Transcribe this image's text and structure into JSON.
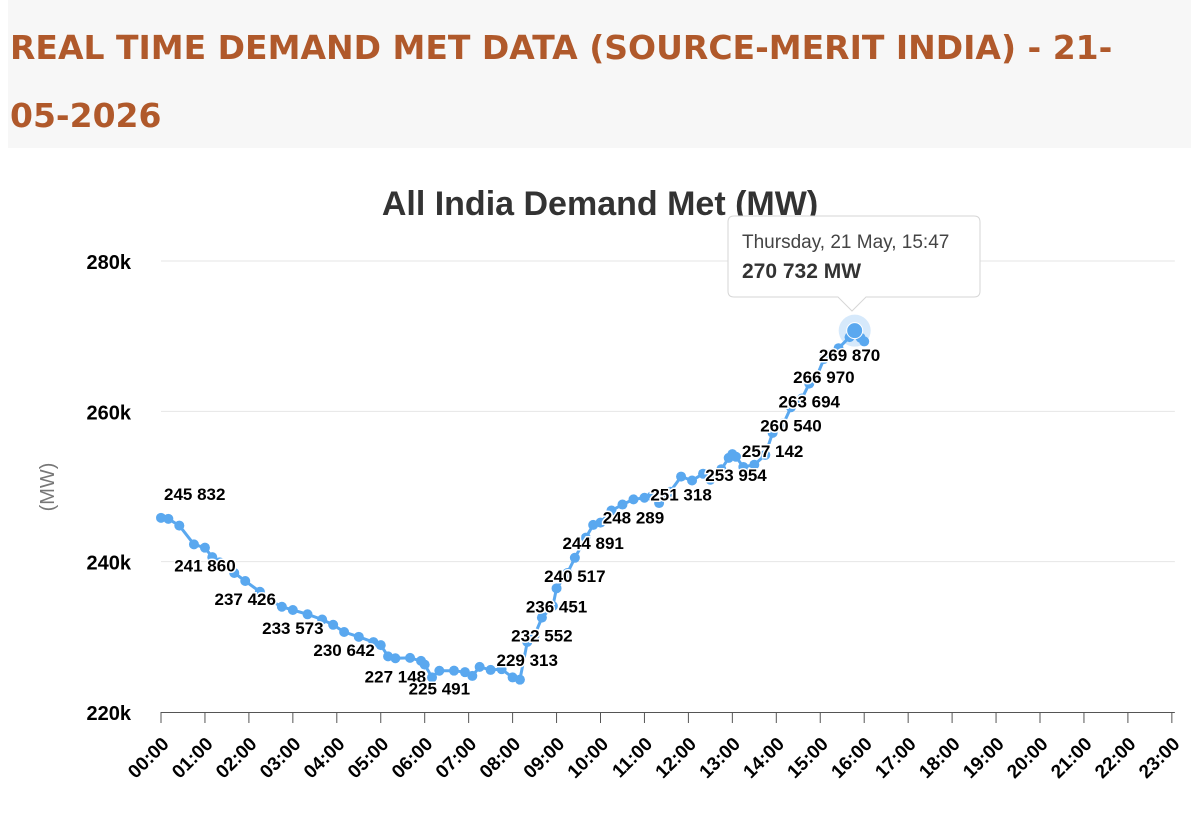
{
  "page": {
    "title": "REAL TIME DEMAND MET DATA (SOURCE-MERIT INDIA) - 21-05-2026"
  },
  "colors": {
    "title": "#b0592b",
    "series": "#5aa8ef",
    "grid": "#e6e6e6",
    "axis_text": "#000000",
    "ylabel": "#777777"
  },
  "chart_data": {
    "type": "line",
    "title": "All India Demand Met (MW)",
    "ylabel": "(MW)",
    "xlabel": "",
    "x_unit": "time of day (HH:MM)",
    "xlim": [
      "00:00",
      "23:00"
    ],
    "ylim": [
      220000,
      280000
    ],
    "yticks": [
      220000,
      240000,
      260000,
      280000
    ],
    "ytick_labels": [
      "220k",
      "240k",
      "260k",
      "280k"
    ],
    "xtick_labels": [
      "00:00",
      "01:00",
      "02:00",
      "03:00",
      "04:00",
      "05:00",
      "06:00",
      "07:00",
      "08:00",
      "09:00",
      "10:00",
      "11:00",
      "12:00",
      "13:00",
      "14:00",
      "15:00",
      "16:00",
      "17:00",
      "18:00",
      "19:00",
      "20:00",
      "21:00",
      "22:00",
      "23:00"
    ],
    "grid": true,
    "legend": "none",
    "series": [
      {
        "points": [
          [
            "00:00",
            245832
          ],
          [
            "00:10",
            245700
          ],
          [
            "00:25",
            244800
          ],
          [
            "00:45",
            242300
          ],
          [
            "01:00",
            241860
          ],
          [
            "01:10",
            240600
          ],
          [
            "01:20",
            239900
          ],
          [
            "01:40",
            238500
          ],
          [
            "01:55",
            237426
          ],
          [
            "02:15",
            236000
          ],
          [
            "02:30",
            234800
          ],
          [
            "02:45",
            234000
          ],
          [
            "03:00",
            233573
          ],
          [
            "03:20",
            233000
          ],
          [
            "03:40",
            232300
          ],
          [
            "03:55",
            231600
          ],
          [
            "04:10",
            230642
          ],
          [
            "04:30",
            230000
          ],
          [
            "04:50",
            229300
          ],
          [
            "05:00",
            228900
          ],
          [
            "05:10",
            227400
          ],
          [
            "05:20",
            227148
          ],
          [
            "05:40",
            227200
          ],
          [
            "05:55",
            226800
          ],
          [
            "06:00",
            226300
          ],
          [
            "06:10",
            224600
          ],
          [
            "06:20",
            225491
          ],
          [
            "06:40",
            225500
          ],
          [
            "06:55",
            225300
          ],
          [
            "07:05",
            224800
          ],
          [
            "07:15",
            226000
          ],
          [
            "07:30",
            225600
          ],
          [
            "07:45",
            225700
          ],
          [
            "08:00",
            224600
          ],
          [
            "08:10",
            224300
          ],
          [
            "08:20",
            229313
          ],
          [
            "08:30",
            230200
          ],
          [
            "08:40",
            232552
          ],
          [
            "08:55",
            234100
          ],
          [
            "09:00",
            236451
          ],
          [
            "09:15",
            238500
          ],
          [
            "09:25",
            240517
          ],
          [
            "09:40",
            243200
          ],
          [
            "09:50",
            244891
          ],
          [
            "10:00",
            245200
          ],
          [
            "10:15",
            246800
          ],
          [
            "10:30",
            247600
          ],
          [
            "10:45",
            248289
          ],
          [
            "11:00",
            248500
          ],
          [
            "11:10",
            248700
          ],
          [
            "11:20",
            247800
          ],
          [
            "11:35",
            249300
          ],
          [
            "11:50",
            251318
          ],
          [
            "12:05",
            250800
          ],
          [
            "12:20",
            251700
          ],
          [
            "12:30",
            250900
          ],
          [
            "12:45",
            252300
          ],
          [
            "12:55",
            253800
          ],
          [
            "13:00",
            254300
          ],
          [
            "13:05",
            253954
          ],
          [
            "13:15",
            252600
          ],
          [
            "13:30",
            252900
          ],
          [
            "13:45",
            254200
          ],
          [
            "13:55",
            257142
          ],
          [
            "14:10",
            258400
          ],
          [
            "14:20",
            260540
          ],
          [
            "14:35",
            261700
          ],
          [
            "14:45",
            263694
          ],
          [
            "14:55",
            264600
          ],
          [
            "15:05",
            266970
          ],
          [
            "15:15",
            267600
          ],
          [
            "15:25",
            268400
          ],
          [
            "15:40",
            269870
          ],
          [
            "15:47",
            270732
          ],
          [
            "15:55",
            269800
          ],
          [
            "16:00",
            269300
          ]
        ]
      }
    ],
    "data_labels": [
      {
        "time": "00:00",
        "value": 245832,
        "text": "245 832"
      },
      {
        "time": "01:00",
        "value": 241860,
        "text": "241 860"
      },
      {
        "time": "01:55",
        "value": 237426,
        "text": "237 426"
      },
      {
        "time": "03:00",
        "value": 233573,
        "text": "233 573"
      },
      {
        "time": "04:10",
        "value": 230642,
        "text": "230 642"
      },
      {
        "time": "05:20",
        "value": 227148,
        "text": "227 148"
      },
      {
        "time": "06:20",
        "value": 225491,
        "text": "225 491"
      },
      {
        "time": "08:20",
        "value": 229313,
        "text": "229 313"
      },
      {
        "time": "08:40",
        "value": 232552,
        "text": "232 552"
      },
      {
        "time": "09:00",
        "value": 236451,
        "text": "236 451"
      },
      {
        "time": "09:25",
        "value": 240517,
        "text": "240 517"
      },
      {
        "time": "09:50",
        "value": 244891,
        "text": "244 891"
      },
      {
        "time": "10:45",
        "value": 248289,
        "text": "248 289"
      },
      {
        "time": "11:50",
        "value": 251318,
        "text": "251 318"
      },
      {
        "time": "13:05",
        "value": 253954,
        "text": "253 954"
      },
      {
        "time": "13:55",
        "value": 257142,
        "text": "257 142"
      },
      {
        "time": "14:20",
        "value": 260540,
        "text": "260 540"
      },
      {
        "time": "14:45",
        "value": 263694,
        "text": "263 694"
      },
      {
        "time": "15:05",
        "value": 266970,
        "text": "266 970"
      },
      {
        "time": "15:40",
        "value": 269870,
        "text": "269 870"
      }
    ],
    "tooltip": {
      "time": "15:47",
      "value": 270732,
      "date_text": "Thursday, 21 May, 15:47",
      "value_text": "270 732 MW"
    }
  }
}
